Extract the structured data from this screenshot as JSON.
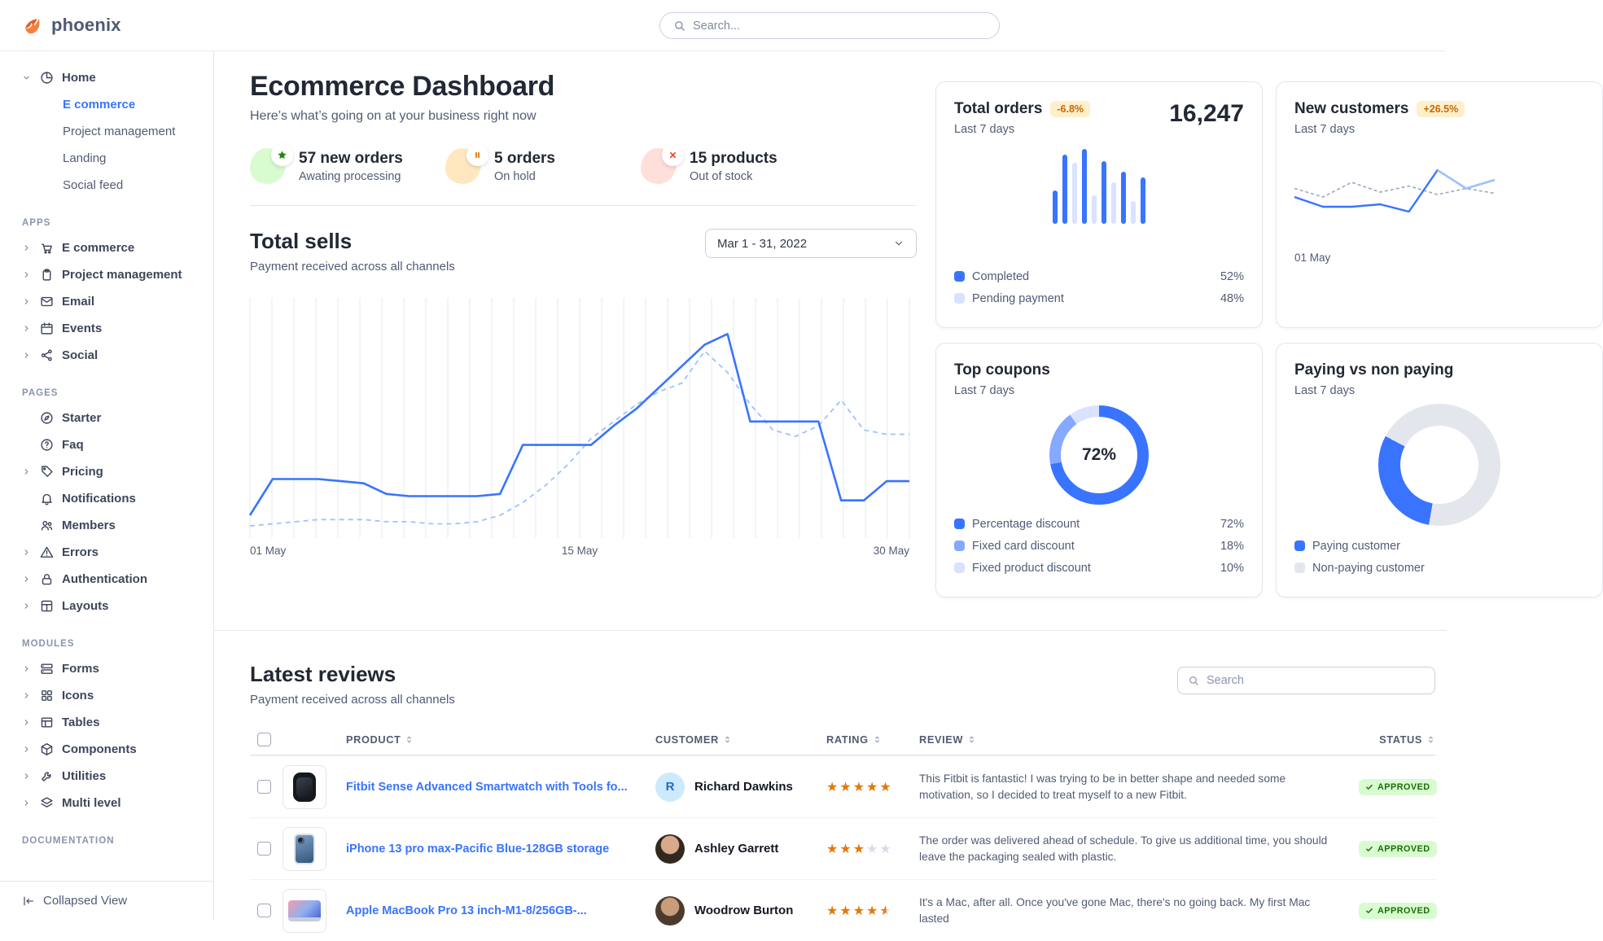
{
  "colors": {
    "primary": "#3874ff",
    "star": "#e5780b",
    "warn-bg": "#ffefca",
    "warn-tx": "#c26a0b",
    "ok-bg": "#d9fbd0",
    "ok-tx": "#1c6c09"
  },
  "brand": {
    "name": "phoenix"
  },
  "navbar": {
    "search_placeholder": "Search..."
  },
  "sidebar": {
    "home": {
      "label": "Home",
      "icon": "pie-chart",
      "children": [
        {
          "label": "E commerce",
          "active": true
        },
        {
          "label": "Project management",
          "active": false
        },
        {
          "label": "Landing",
          "active": false
        },
        {
          "label": "Social feed",
          "active": false
        }
      ]
    },
    "sections": [
      {
        "label": "APPS",
        "items": [
          {
            "label": "E commerce",
            "icon": "shopping-cart",
            "caret": true
          },
          {
            "label": "Project management",
            "icon": "clipboard",
            "caret": true
          },
          {
            "label": "Email",
            "icon": "envelope",
            "caret": true
          },
          {
            "label": "Events",
            "icon": "calendar",
            "caret": true
          },
          {
            "label": "Social",
            "icon": "share",
            "caret": true
          }
        ]
      },
      {
        "label": "PAGES",
        "items": [
          {
            "label": "Starter",
            "icon": "compass",
            "caret": false
          },
          {
            "label": "Faq",
            "icon": "question-circle",
            "caret": false
          },
          {
            "label": "Pricing",
            "icon": "tag",
            "caret": true
          },
          {
            "label": "Notifications",
            "icon": "bell",
            "caret": false
          },
          {
            "label": "Members",
            "icon": "users",
            "caret": false
          },
          {
            "label": "Errors",
            "icon": "warning-triangle",
            "caret": true
          },
          {
            "label": "Authentication",
            "icon": "lock",
            "caret": true
          },
          {
            "label": "Layouts",
            "icon": "layout",
            "caret": true
          }
        ]
      },
      {
        "label": "MODULES",
        "items": [
          {
            "label": "Forms",
            "icon": "forms",
            "caret": true
          },
          {
            "label": "Icons",
            "icon": "icons-grid",
            "caret": true
          },
          {
            "label": "Tables",
            "icon": "table",
            "caret": true
          },
          {
            "label": "Components",
            "icon": "components",
            "caret": true
          },
          {
            "label": "Utilities",
            "icon": "wrench",
            "caret": true
          },
          {
            "label": "Multi level",
            "icon": "layers",
            "caret": true
          }
        ]
      },
      {
        "label": "DOCUMENTATION",
        "items": []
      }
    ],
    "footer": {
      "label": "Collapsed View",
      "icon": "collapse-left"
    }
  },
  "page": {
    "title": "Ecommerce Dashboard",
    "subtitle": "Here’s what’s going on at your business right now"
  },
  "stats": [
    {
      "value": "57 new orders",
      "caption": "Awating processing",
      "icon": "star-filled",
      "theme": "success"
    },
    {
      "value": "5 orders",
      "caption": "On hold",
      "icon": "pause",
      "theme": "warning"
    },
    {
      "value": "15 products",
      "caption": "Out of stock",
      "icon": "x",
      "theme": "danger"
    }
  ],
  "total_sells": {
    "title": "Total sells",
    "subtitle": "Payment received across all channels",
    "date_range": "Mar 1 - 31, 2022",
    "chart_data": {
      "type": "line",
      "x_ticks": [
        "01 May",
        "15 May",
        "30 May"
      ],
      "ylim": [
        0,
        100
      ],
      "grid": "vertical",
      "series": [
        {
          "name": "current",
          "style": "solid",
          "color": "#3874ff",
          "values": [
            8,
            25,
            25,
            25,
            24,
            23,
            18,
            17,
            17,
            17,
            17,
            18,
            41,
            41,
            41,
            41,
            50,
            58,
            68,
            78,
            88,
            93,
            52,
            52,
            52,
            52,
            15,
            15,
            24,
            24
          ]
        },
        {
          "name": "previous",
          "style": "dashed",
          "color": "#9ec2ff",
          "values": [
            3,
            4,
            5,
            6,
            6,
            6,
            5,
            5,
            4,
            4,
            5,
            8,
            14,
            22,
            32,
            44,
            52,
            60,
            66,
            70,
            85,
            75,
            60,
            48,
            45,
            50,
            62,
            48,
            46,
            46
          ]
        }
      ]
    }
  },
  "cards": {
    "total_orders": {
      "title": "Total orders",
      "period": "Last 7 days",
      "badge": "-6.8%",
      "value": "16,247",
      "legend": [
        {
          "label": "Completed",
          "val": "52%",
          "color": "#3874ff"
        },
        {
          "label": "Pending payment",
          "val": "48%",
          "color": "#d9e2ff"
        }
      ],
      "chart_data": {
        "type": "bar",
        "values": [
          45,
          92,
          82,
          100,
          38,
          84,
          55,
          70,
          30,
          62
        ],
        "kinds": [
          "solid",
          "solid",
          "light",
          "solid",
          "light",
          "solid",
          "light",
          "solid",
          "light",
          "solid"
        ]
      }
    },
    "new_customers": {
      "title": "New customers",
      "period": "Last 7 days",
      "badge": "+26.5%",
      "x_tick": "01 May",
      "chart_data": {
        "type": "line",
        "series": [
          {
            "name": "previous",
            "style": "dashed",
            "color": "#9fa6bc",
            "values": [
              45,
              38,
              50,
              42,
              47,
              40,
              45,
              41
            ]
          },
          {
            "name": "current",
            "style": "solid",
            "color": "#3874ff",
            "values": [
              38,
              30,
              30,
              32,
              26,
              60,
              45,
              52
            ]
          }
        ]
      }
    },
    "top_coupons": {
      "title": "Top coupons",
      "period": "Last 7 days",
      "center_value": "72%",
      "chart_data": {
        "type": "donut",
        "segments": [
          {
            "label": "Percentage discount",
            "value": 72,
            "color": "#3874ff"
          },
          {
            "label": "Fixed card discount",
            "value": 18,
            "color": "#85a9ff"
          },
          {
            "label": "Fixed product discount",
            "value": 10,
            "color": "#d9e2ff"
          }
        ]
      }
    },
    "paying": {
      "title": "Paying vs non paying",
      "period": "Last 7 days",
      "chart_data": {
        "type": "donut",
        "segments": [
          {
            "label": "Paying customer",
            "value": 30,
            "color": "#3874ff"
          },
          {
            "label": "Non-paying customer",
            "value": 70,
            "color": "#e3e6ed"
          }
        ]
      }
    }
  },
  "reviews": {
    "title": "Latest reviews",
    "subtitle": "Payment received across all channels",
    "search_placeholder": "Search",
    "columns": [
      "PRODUCT",
      "CUSTOMER",
      "RATING",
      "REVIEW",
      "STATUS"
    ],
    "rows": [
      {
        "product": "Fitbit Sense Advanced Smartwatch with Tools fo...",
        "thumb": "watch",
        "customer": {
          "name": "Richard Dawkins",
          "avatar_type": "initial",
          "avatar_text": "R"
        },
        "rating": 5,
        "review": "This Fitbit is fantastic! I was trying to be in better shape and needed some motivation, so I decided to treat myself to a new Fitbit.",
        "status": "APPROVED"
      },
      {
        "product": "iPhone 13 pro max-Pacific Blue-128GB storage",
        "thumb": "phone",
        "customer": {
          "name": "Ashley Garrett",
          "avatar_type": "photo",
          "avatar_text": ""
        },
        "rating": 3,
        "review": "The order was delivered ahead of schedule. To give us additional time, you should leave the packaging sealed with plastic.",
        "status": "APPROVED"
      },
      {
        "product": "Apple MacBook Pro 13 inch-M1-8/256GB-...",
        "thumb": "laptop",
        "customer": {
          "name": "Woodrow Burton",
          "avatar_type": "photo",
          "avatar_text": ""
        },
        "rating": 4.5,
        "review": "It's a Mac, after all. Once you've gone Mac, there's no going back. My first Mac lasted",
        "status": "APPROVED"
      }
    ]
  }
}
